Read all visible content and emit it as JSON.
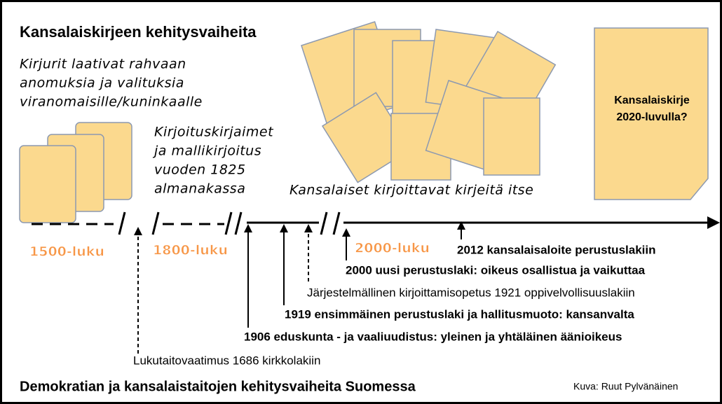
{
  "header": {
    "title": "Kansalaiskirjeen kehitysvaiheita"
  },
  "notes": {
    "scribes": [
      "Kirjurit laativat rahvaan",
      "anomuksia ja valituksia",
      "viranomaisille/kuninkaalle"
    ],
    "script": [
      "Kirjoituskirjaimet",
      "ja mallikirjoitus",
      "vuoden 1825",
      "almanakassa"
    ],
    "citizens": "Kansalaiset kirjoittavat kirjeitä itse"
  },
  "future": [
    "Kansalaiskirje",
    "2020-luvulla?"
  ],
  "eras": [
    "1500-luku",
    "1800-luku",
    "2000-luku"
  ],
  "events": [
    "2012 kansalaisaloite perustuslakiin",
    "2000 uusi perustuslaki: oikeus osallistua ja vaikuttaa",
    "Järjestelmällinen kirjoittamisopetus 1921 oppivelvollisuuslakiin",
    "1919 ensimmäinen perustuslaki ja hallitusmuoto: kansanvalta",
    "1906 eduskunta - ja vaaliuudistus: yleinen ja yhtäläinen äänioikeus",
    "Lukutaitovaatimus 1686 kirkkolakiin"
  ],
  "footer": {
    "caption": "Demokratian ja kansalaistaitojen kehitysvaiheita Suomessa",
    "credit": "Kuva: Ruut Pylvänäinen"
  }
}
